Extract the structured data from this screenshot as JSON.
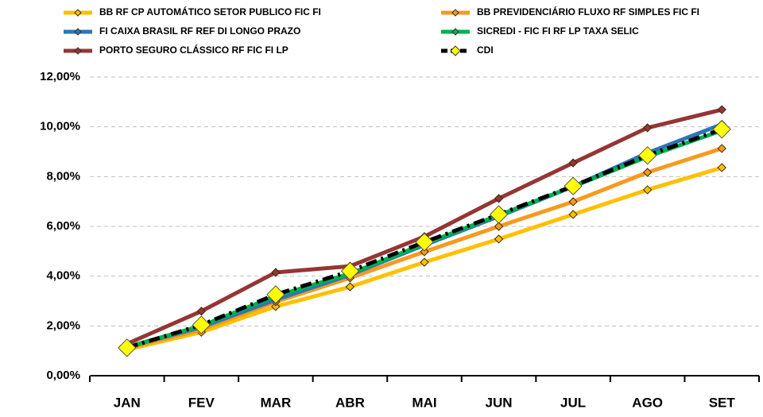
{
  "chart_data": {
    "type": "line",
    "categories": [
      "JAN",
      "FEV",
      "MAR",
      "ABR",
      "MAI",
      "JUN",
      "JUL",
      "AGO",
      "SET"
    ],
    "series": [
      {
        "name": "BB RF CP AUTOMÁTICO SETOR PUBLICO FIC FI",
        "color": "#FFC000",
        "values": [
          1.05,
          1.75,
          2.78,
          3.57,
          4.56,
          5.49,
          6.48,
          7.47,
          8.36
        ]
      },
      {
        "name": "BB PREVIDENCIÁRIO FLUXO RF SIMPLES FIC FI",
        "color": "#F79A1E",
        "values": [
          1.1,
          1.85,
          2.97,
          3.93,
          4.98,
          6.0,
          6.99,
          8.17,
          9.13
        ]
      },
      {
        "name": "FI CAIXA BRASIL RF REF DI LONGO PRAZO",
        "color": "#2E75B6",
        "values": [
          1.15,
          1.95,
          3.05,
          4.05,
          5.25,
          6.4,
          7.6,
          8.95,
          10.1
        ]
      },
      {
        "name": "SICREDI - FIC FI RF LP TAXA SELIC",
        "color": "#00B050",
        "values": [
          1.15,
          2.0,
          3.2,
          4.1,
          5.3,
          6.45,
          7.6,
          8.8,
          9.85
        ]
      },
      {
        "name": "PORTO SEGURO CLÁSSICO RF FIC FI LP",
        "color": "#943634",
        "values": [
          1.28,
          2.59,
          4.15,
          4.4,
          5.59,
          7.12,
          8.55,
          9.96,
          10.69
        ]
      },
      {
        "name": "CDI",
        "color": "#000000",
        "marker_color": "#FFFF00",
        "dashed": true,
        "values": [
          1.12,
          2.04,
          3.26,
          4.2,
          5.37,
          6.48,
          7.62,
          8.85,
          9.9
        ]
      }
    ],
    "ylim": [
      0,
      12
    ],
    "yticks": [
      {
        "value": 0,
        "label": "0,00%"
      },
      {
        "value": 2,
        "label": "2,00%"
      },
      {
        "value": 4,
        "label": "4,00%"
      },
      {
        "value": 6,
        "label": "6,00%"
      },
      {
        "value": 8,
        "label": "8,00%"
      },
      {
        "value": 10,
        "label": "10,00%"
      },
      {
        "value": 12,
        "label": "12,00%"
      }
    ],
    "grid": true
  }
}
